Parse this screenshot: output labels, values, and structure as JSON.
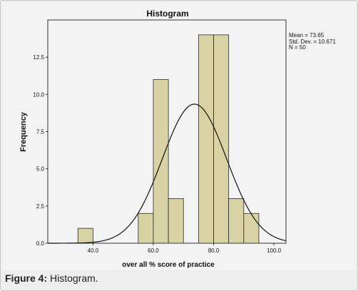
{
  "chart_data": {
    "type": "bar",
    "title": "Histogram",
    "xlabel": "over all % score of practice",
    "ylabel": "Frequency",
    "bin_width": 5,
    "bins": [
      {
        "start": 35,
        "end": 40,
        "count": 1
      },
      {
        "start": 40,
        "end": 45,
        "count": 0
      },
      {
        "start": 45,
        "end": 50,
        "count": 0
      },
      {
        "start": 50,
        "end": 55,
        "count": 0
      },
      {
        "start": 55,
        "end": 60,
        "count": 2
      },
      {
        "start": 60,
        "end": 65,
        "count": 11
      },
      {
        "start": 65,
        "end": 70,
        "count": 3
      },
      {
        "start": 70,
        "end": 75,
        "count": 0
      },
      {
        "start": 75,
        "end": 80,
        "count": 14
      },
      {
        "start": 80,
        "end": 85,
        "count": 14
      },
      {
        "start": 85,
        "end": 90,
        "count": 3
      },
      {
        "start": 90,
        "end": 95,
        "count": 2
      }
    ],
    "xlim": [
      25,
      104
    ],
    "ylim": [
      0,
      15
    ],
    "x_ticks": [
      "40.0",
      "60.0",
      "80.0",
      "100.0"
    ],
    "x_tick_values": [
      40,
      60,
      80,
      100
    ],
    "y_ticks": [
      "0.0",
      "2.5",
      "5.0",
      "7.5",
      "10.0",
      "12.5"
    ],
    "y_tick_values": [
      0,
      2.5,
      5,
      7.5,
      10,
      12.5
    ],
    "normal_curve": {
      "mean": 73.65,
      "sd": 10.671,
      "n": 50
    },
    "stats_lines": [
      "Mean = 73.65",
      "Std. Dev. = 10.671",
      "N = 50"
    ],
    "grid": false,
    "colors": {
      "bar_fill": "#d8d2a4",
      "bar_stroke": "#2a2a2a",
      "curve": "#111111",
      "plot_bg": "#f3f3f3"
    }
  },
  "caption": {
    "label": "Figure 4:",
    "text": " Histogram."
  }
}
